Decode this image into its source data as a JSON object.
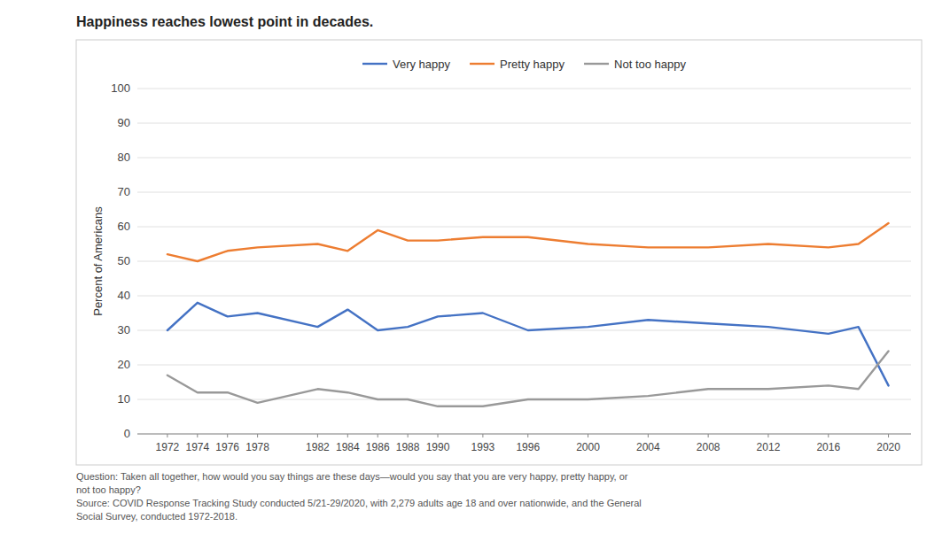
{
  "chart_data": {
    "type": "line",
    "title": "Happiness reaches lowest point in decades.",
    "ylabel": "Percent of Americans",
    "footnote": "Question: Taken all together, how would you say things are these days—would you say that you are very happy, pretty happy, or\nnot too happy?\nSource: COVID Response Tracking Study conducted 5/21-29/2020, with 2,279 adults age 18 and over nationwide, and the General\nSocial Survey, conducted 1972-2018.",
    "x": [
      1972,
      1974,
      1976,
      1978,
      1982,
      1984,
      1986,
      1988,
      1990,
      1993,
      1996,
      2000,
      2004,
      2008,
      2012,
      2016,
      2018,
      2020
    ],
    "series": [
      {
        "name": "Very happy",
        "color": "#4472c4",
        "values": [
          30,
          38,
          34,
          35,
          31,
          36,
          30,
          31,
          34,
          35,
          30,
          31,
          33,
          32,
          31,
          29,
          31,
          14
        ]
      },
      {
        "name": "Pretty happy",
        "color": "#ed7d31",
        "values": [
          52,
          50,
          53,
          54,
          55,
          53,
          59,
          56,
          56,
          57,
          57,
          55,
          54,
          54,
          55,
          54,
          55,
          61
        ]
      },
      {
        "name": "Not too happy",
        "color": "#999999",
        "values": [
          17,
          12,
          12,
          9,
          13,
          12,
          10,
          10,
          8,
          8,
          10,
          10,
          11,
          13,
          13,
          14,
          13,
          24
        ]
      }
    ],
    "xlim": [
      1970,
      2021.5
    ],
    "xticks": [
      1972,
      1974,
      1976,
      1978,
      1982,
      1984,
      1986,
      1988,
      1990,
      1993,
      1996,
      2000,
      2004,
      2008,
      2012,
      2016,
      2020
    ],
    "ylim": [
      0,
      100
    ],
    "yticks": [
      0,
      10,
      20,
      30,
      40,
      50,
      60,
      70,
      80,
      90,
      100
    ],
    "grid": true,
    "legend": "top"
  }
}
